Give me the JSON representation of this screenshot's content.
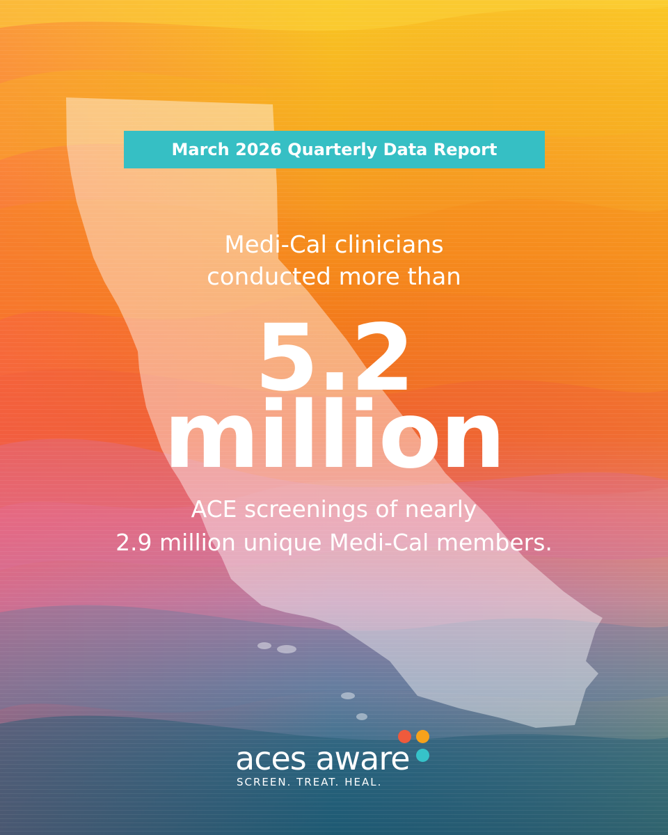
{
  "badge": {
    "text": "March 2026 Quarterly Data Report"
  },
  "headline": {
    "intro_line1": "Medi-Cal clinicians",
    "intro_line2": "conducted more than",
    "big_number": "5.2",
    "big_unit": "million",
    "outro_line1": "ACE screenings of nearly",
    "outro_line2": "2.9 million unique Medi-Cal members."
  },
  "logo": {
    "wordmark": "aces aware",
    "tagline": "SCREEN. TREAT. HEAL."
  },
  "colors": {
    "badge_bg": "#36bfc4",
    "text": "#ffffff",
    "dot_red": "#ef5a3c",
    "dot_orange": "#f7a21b",
    "dot_teal": "#36c3c9",
    "bg_top": "#f9c623",
    "bg_mid": "#f27a1a",
    "bg_pink": "#d884a8",
    "bg_bottom": "#1f5d78"
  },
  "icons": {
    "map": "california-state-silhouette"
  }
}
